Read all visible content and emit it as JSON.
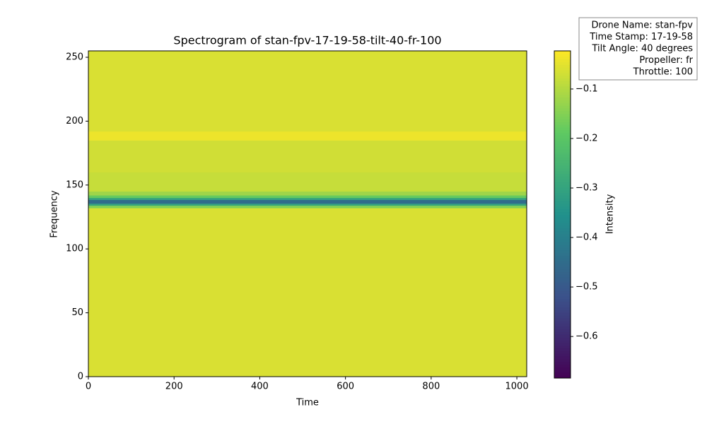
{
  "chart_data": {
    "type": "heatmap",
    "title": "Spectrogram of stan-fpv-17-19-58-tilt-40-fr-100",
    "xlabel": "Time",
    "ylabel": "Frequency",
    "colorbar_label": "Intensity",
    "xlim": [
      0,
      1023
    ],
    "ylim": [
      0,
      255
    ],
    "xticks": [
      0,
      200,
      400,
      600,
      800,
      1000
    ],
    "yticks": [
      0,
      50,
      100,
      150,
      200,
      250
    ],
    "ybins": [
      0,
      132,
      134,
      135.5,
      138.5,
      140,
      142,
      145,
      160,
      185,
      192,
      255
    ],
    "values": [
      -0.06,
      -0.15,
      -0.3,
      -0.45,
      -0.3,
      -0.18,
      -0.12,
      -0.08,
      -0.07,
      -0.04,
      -0.06
    ],
    "clim": [
      -0.684,
      -0.023
    ],
    "cticks": [
      {
        "value": -0.6,
        "label": "−0.6"
      },
      {
        "value": -0.5,
        "label": "−0.5"
      },
      {
        "value": -0.4,
        "label": "−0.4"
      },
      {
        "value": -0.3,
        "label": "−0.3"
      },
      {
        "value": -0.2,
        "label": "−0.2"
      },
      {
        "value": -0.1,
        "label": "−0.1"
      }
    ],
    "colormap": [
      "#440154",
      "#3b528b",
      "#21918c",
      "#5ec962",
      "#fde725"
    ],
    "annotation": [
      "Drone Name: stan-fpv",
      "Time Stamp: 17-19-58",
      "Tilt Angle: 40 degrees",
      "Propeller: fr",
      "Throttle: 100"
    ]
  }
}
